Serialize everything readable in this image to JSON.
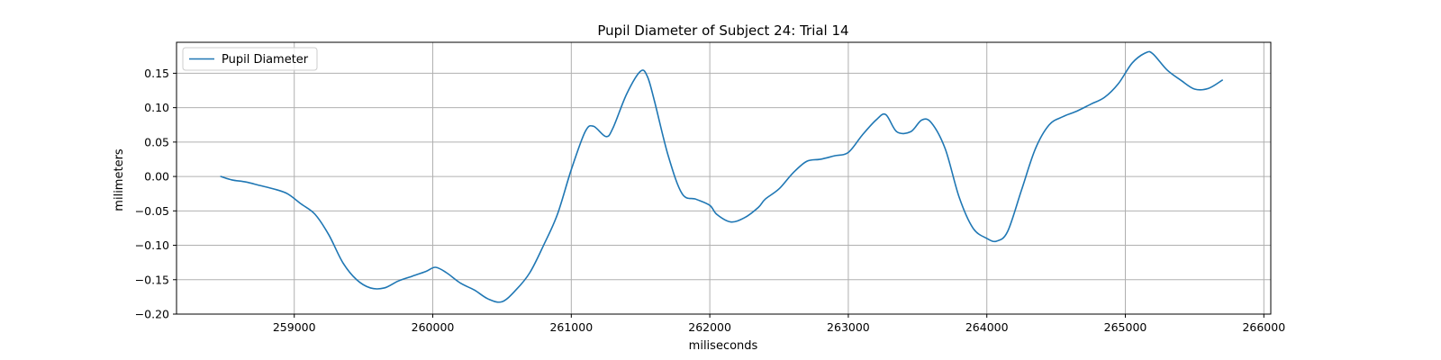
{
  "chart_data": {
    "type": "line",
    "title": "Pupil Diameter of Subject 24: Trial 14",
    "xlabel": "miliseconds",
    "ylabel": "milimeters",
    "xlim": [
      258150,
      266050
    ],
    "ylim": [
      -0.2,
      0.195
    ],
    "xticks": [
      259000,
      260000,
      261000,
      262000,
      263000,
      264000,
      265000,
      266000
    ],
    "yticks": [
      -0.2,
      -0.15,
      -0.1,
      -0.05,
      0.0,
      0.05,
      0.1,
      0.15
    ],
    "xtick_labels": [
      "259000",
      "260000",
      "261000",
      "262000",
      "263000",
      "264000",
      "265000",
      "266000"
    ],
    "ytick_labels": [
      "−0.20",
      "−0.15",
      "−0.10",
      "−0.05",
      "0.00",
      "0.05",
      "0.10",
      "0.15"
    ],
    "grid": true,
    "legend": {
      "position": "top-left",
      "entries": [
        "Pupil Diameter"
      ]
    },
    "series": [
      {
        "name": "Pupil Diameter",
        "color": "#1f77b4",
        "x": [
          258470,
          258550,
          258650,
          258750,
          258850,
          258950,
          259050,
          259150,
          259250,
          259350,
          259450,
          259550,
          259650,
          259750,
          259850,
          259950,
          260020,
          260100,
          260200,
          260300,
          260400,
          260500,
          260600,
          260700,
          260800,
          260900,
          261000,
          261100,
          261160,
          261250,
          261300,
          261400,
          261500,
          261550,
          261600,
          261700,
          261800,
          261900,
          262000,
          262050,
          262150,
          262250,
          262350,
          262400,
          262500,
          262600,
          262700,
          262800,
          262900,
          263000,
          263100,
          263200,
          263270,
          263350,
          263450,
          263530,
          263600,
          263700,
          263800,
          263900,
          264000,
          264070,
          264150,
          264250,
          264350,
          264450,
          264550,
          264650,
          264750,
          264850,
          264950,
          265050,
          265150,
          265200,
          265300,
          265400,
          265500,
          265600,
          265700
        ],
        "y": [
          0.0,
          -0.005,
          -0.008,
          -0.013,
          -0.018,
          -0.025,
          -0.04,
          -0.055,
          -0.085,
          -0.125,
          -0.15,
          -0.162,
          -0.162,
          -0.152,
          -0.145,
          -0.138,
          -0.132,
          -0.14,
          -0.155,
          -0.165,
          -0.178,
          -0.182,
          -0.165,
          -0.14,
          -0.1,
          -0.055,
          0.01,
          0.065,
          0.073,
          0.058,
          0.07,
          0.12,
          0.153,
          0.145,
          0.11,
          0.03,
          -0.025,
          -0.033,
          -0.042,
          -0.055,
          -0.066,
          -0.06,
          -0.045,
          -0.033,
          -0.018,
          0.005,
          0.022,
          0.025,
          0.03,
          0.035,
          0.06,
          0.082,
          0.09,
          0.065,
          0.065,
          0.082,
          0.078,
          0.04,
          -0.03,
          -0.075,
          -0.09,
          -0.094,
          -0.08,
          -0.02,
          0.04,
          0.075,
          0.087,
          0.095,
          0.105,
          0.115,
          0.135,
          0.165,
          0.18,
          0.178,
          0.155,
          0.14,
          0.127,
          0.128,
          0.14
        ]
      }
    ]
  }
}
